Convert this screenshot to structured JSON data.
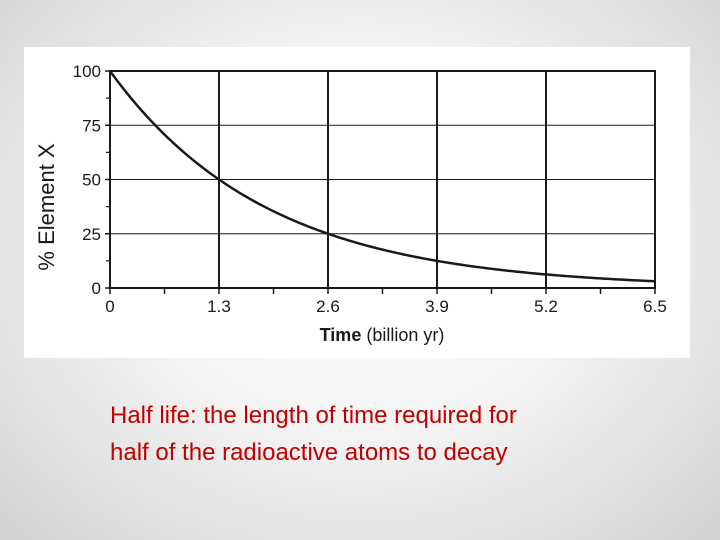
{
  "chart_data": {
    "type": "line",
    "title": "",
    "ylabel": "% Element X",
    "xlabel_bold": "Time",
    "xlabel_rest": " (billion yr)",
    "x_ticks": [
      "0",
      "1.3",
      "2.6",
      "3.9",
      "5.2",
      "6.5"
    ],
    "y_ticks": [
      "0",
      "25",
      "50",
      "75",
      "100"
    ],
    "xlim": [
      0,
      6.5
    ],
    "ylim": [
      0,
      100
    ],
    "half_life": 1.3,
    "grid": true,
    "series": [
      {
        "x": [
          0,
          0.65,
          1.3,
          1.95,
          2.6,
          3.25,
          3.9,
          4.55,
          5.2,
          5.85,
          6.5
        ],
        "y": [
          100,
          70.7,
          50,
          35.4,
          25,
          17.7,
          12.5,
          8.8,
          6.25,
          4.4,
          3.1
        ]
      }
    ],
    "line_color": "#1a1a1a"
  },
  "caption": {
    "line1": "Half life: the length of time required for",
    "line2": "half of the radioactive atoms to decay"
  }
}
